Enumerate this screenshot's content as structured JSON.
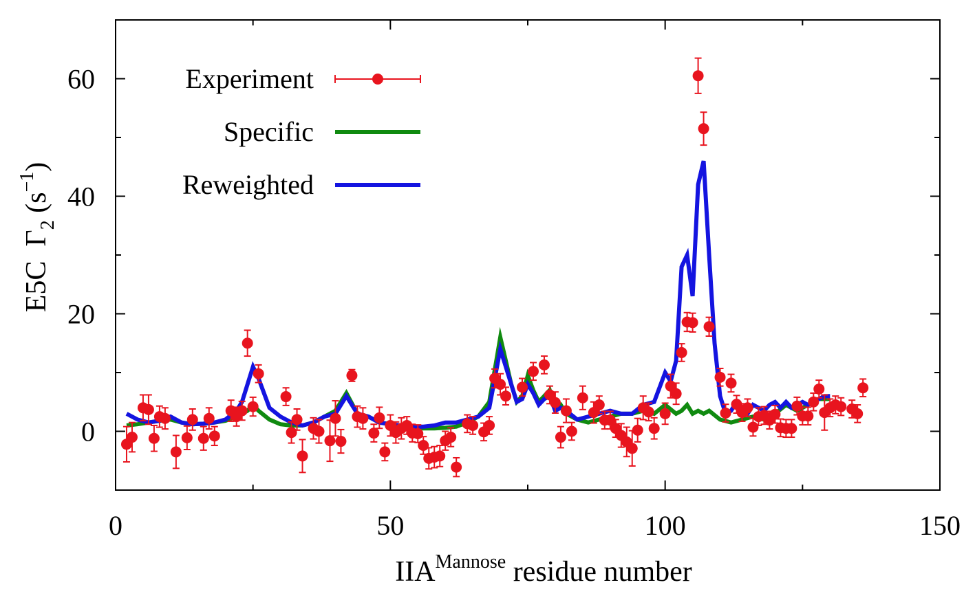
{
  "chart_data": {
    "type": "scatter",
    "xlabel": {
      "main": "IIA",
      "sup": "Mannose",
      "rest": " residue number"
    },
    "ylabel": {
      "pre": "E5C  Γ",
      "sub": "2",
      "mid": " (s",
      "sup": "−1",
      "post": ")"
    },
    "xlim": [
      0,
      150
    ],
    "ylim": [
      -10,
      70
    ],
    "xticks": [
      0,
      50,
      100,
      150
    ],
    "yticks": [
      0,
      20,
      40,
      60
    ],
    "grid": false,
    "legend_position": "top-left",
    "colors": {
      "experiment": "#e8141e",
      "specific": "#108a10",
      "reweighted": "#1414e0"
    },
    "series": [
      {
        "name": "Experiment",
        "kind": "points-with-errorbars",
        "x": [
          2,
          3,
          5,
          6,
          7,
          8,
          9,
          11,
          13,
          14,
          16,
          17,
          18,
          21,
          22,
          23,
          24,
          25,
          26,
          31,
          32,
          33,
          34,
          36,
          37,
          39,
          40,
          41,
          43,
          44,
          45,
          47,
          48,
          49,
          50,
          51,
          52,
          53,
          54,
          55,
          56,
          57,
          58,
          59,
          60,
          61,
          62,
          64,
          65,
          67,
          68,
          69,
          70,
          71,
          74,
          76,
          78,
          79,
          80,
          81,
          82,
          83,
          85,
          87,
          88,
          89,
          90,
          91,
          92,
          93,
          94,
          95,
          96,
          97,
          98,
          100,
          101,
          102,
          103,
          104,
          105,
          106,
          107,
          108,
          110,
          111,
          112,
          113,
          114,
          115,
          116,
          117,
          118,
          119,
          120,
          121,
          122,
          123,
          124,
          125,
          126,
          127,
          128,
          129,
          130,
          131,
          132,
          134,
          135,
          136
        ],
        "y": [
          -2.2,
          -1.0,
          4.0,
          3.7,
          -1.2,
          2.5,
          2.2,
          -3.5,
          -1.1,
          2.0,
          -1.2,
          2.2,
          -0.8,
          3.5,
          2.5,
          3.5,
          15.0,
          4.2,
          9.8,
          5.9,
          -0.2,
          2.0,
          -4.2,
          0.5,
          0.0,
          -1.6,
          2.2,
          -1.7,
          9.5,
          2.5,
          2.2,
          -0.3,
          2.3,
          -3.5,
          1.0,
          -0.2,
          0.5,
          1.0,
          -0.3,
          -0.4,
          -2.4,
          -4.6,
          -4.4,
          -4.2,
          -1.6,
          -1.0,
          -6.1,
          1.3,
          1.0,
          -0.1,
          1.0,
          9.0,
          8.0,
          6.0,
          7.5,
          10.2,
          11.3,
          6.2,
          4.9,
          -1.0,
          3.5,
          0.0,
          5.7,
          3.2,
          4.5,
          1.9,
          1.9,
          0.5,
          -0.7,
          -1.8,
          -2.9,
          0.2,
          4.0,
          3.3,
          0.5,
          3.0,
          7.7,
          6.4,
          13.4,
          18.6,
          18.5,
          60.5,
          51.5,
          17.8,
          9.2,
          3.1,
          8.2,
          4.6,
          3.2,
          4.0,
          0.7,
          2.5,
          2.7,
          1.9,
          2.9,
          0.6,
          0.5,
          0.5,
          4.3,
          2.6,
          2.6,
          5.0,
          7.2,
          3.2,
          4.0,
          4.5,
          4.2,
          3.8,
          3.0,
          7.4
        ],
        "yerr": [
          3.0,
          2.5,
          2.2,
          2.5,
          2.2,
          1.8,
          1.8,
          2.8,
          2.0,
          1.8,
          2.0,
          1.8,
          1.6,
          1.8,
          1.6,
          1.6,
          2.2,
          1.6,
          1.5,
          1.5,
          1.8,
          1.8,
          2.8,
          1.8,
          2.0,
          3.5,
          3.0,
          2.0,
          1.0,
          1.8,
          1.8,
          1.5,
          1.8,
          1.5,
          1.8,
          1.8,
          1.8,
          1.5,
          1.5,
          1.5,
          1.5,
          1.8,
          1.8,
          1.8,
          1.6,
          1.6,
          1.6,
          1.5,
          1.5,
          1.5,
          1.5,
          1.6,
          1.8,
          1.5,
          1.5,
          1.5,
          1.5,
          1.5,
          1.8,
          1.8,
          2.0,
          1.5,
          2.0,
          1.8,
          1.5,
          1.5,
          1.5,
          1.5,
          2.0,
          2.5,
          3.0,
          2.0,
          2.0,
          1.5,
          1.8,
          1.8,
          2.0,
          1.8,
          1.5,
          1.6,
          1.6,
          3.0,
          2.8,
          1.6,
          1.5,
          1.5,
          1.5,
          1.5,
          1.5,
          1.5,
          1.5,
          1.5,
          1.5,
          1.5,
          1.5,
          1.5,
          1.5,
          1.5,
          1.5,
          1.5,
          1.5,
          1.5,
          1.5,
          3.0,
          1.5,
          1.5,
          1.5,
          1.5,
          1.5,
          1.5
        ]
      },
      {
        "name": "Specific",
        "kind": "line",
        "x": [
          2,
          4,
          6,
          8,
          10,
          12,
          14,
          16,
          18,
          20,
          22,
          24,
          25,
          26,
          28,
          30,
          32,
          34,
          36,
          38,
          40,
          42,
          44,
          46,
          48,
          50,
          52,
          54,
          56,
          58,
          60,
          62,
          64,
          66,
          68,
          70,
          71,
          72,
          73,
          74,
          75,
          76,
          77,
          78,
          79,
          80,
          81,
          82,
          84,
          86,
          88,
          90,
          92,
          94,
          96,
          98,
          100,
          102,
          103,
          104,
          105,
          106,
          107,
          108,
          110,
          112,
          114,
          116,
          118,
          120,
          122,
          124,
          126,
          128,
          130
        ],
        "y": [
          1.0,
          1.2,
          1.5,
          1.8,
          2.0,
          1.5,
          1.2,
          1.3,
          1.5,
          1.8,
          2.5,
          3.5,
          4.5,
          3.5,
          2.0,
          1.2,
          1.0,
          1.0,
          1.5,
          2.5,
          3.5,
          6.5,
          3.0,
          2.5,
          1.5,
          1.2,
          0.8,
          0.6,
          0.5,
          0.5,
          0.6,
          0.8,
          1.5,
          2.5,
          5.0,
          16.0,
          12.0,
          8.0,
          5.0,
          6.0,
          9.5,
          7.0,
          5.0,
          6.0,
          7.0,
          4.0,
          4.5,
          3.0,
          2.0,
          1.5,
          2.0,
          2.5,
          3.0,
          3.0,
          3.5,
          3.0,
          4.5,
          3.0,
          3.5,
          4.5,
          3.0,
          3.5,
          3.0,
          3.5,
          2.0,
          1.5,
          2.0,
          2.5,
          2.0,
          3.0,
          4.5,
          3.5,
          4.5,
          5.5,
          5.5
        ]
      },
      {
        "name": "Reweighted",
        "kind": "line",
        "x": [
          2,
          4,
          6,
          8,
          10,
          12,
          14,
          16,
          18,
          20,
          22,
          23,
          24,
          25,
          26,
          28,
          30,
          32,
          34,
          36,
          38,
          40,
          42,
          44,
          46,
          48,
          50,
          52,
          54,
          56,
          58,
          60,
          62,
          64,
          66,
          68,
          70,
          71,
          72,
          73,
          74,
          75,
          76,
          77,
          78,
          79,
          80,
          81,
          82,
          84,
          86,
          88,
          90,
          92,
          94,
          96,
          98,
          100,
          101,
          102,
          103,
          104,
          105,
          106,
          107,
          108,
          109,
          110,
          111,
          112,
          113,
          114,
          115,
          116,
          117,
          118,
          119,
          120,
          121,
          122,
          123,
          124,
          125,
          126,
          127,
          128,
          129,
          130
        ],
        "y": [
          3.0,
          2.0,
          1.5,
          1.8,
          2.5,
          1.5,
          1.2,
          1.3,
          1.5,
          2.0,
          3.5,
          5.0,
          8.0,
          11.0,
          9.0,
          4.0,
          2.5,
          1.5,
          1.0,
          1.5,
          2.5,
          3.0,
          6.0,
          3.0,
          2.5,
          1.5,
          1.2,
          1.0,
          0.8,
          0.8,
          1.0,
          1.5,
          1.5,
          2.0,
          2.5,
          4.0,
          14.0,
          11.0,
          8.0,
          5.0,
          5.5,
          8.0,
          6.5,
          4.5,
          5.5,
          6.0,
          3.5,
          4.0,
          3.5,
          2.0,
          2.5,
          3.0,
          3.5,
          3.0,
          3.0,
          4.5,
          5.0,
          10.0,
          8.5,
          12.0,
          28.0,
          30.0,
          23.0,
          42.0,
          46.0,
          30.0,
          15.0,
          6.0,
          3.0,
          3.5,
          5.0,
          4.0,
          3.0,
          4.5,
          4.0,
          3.5,
          4.5,
          5.0,
          4.0,
          5.0,
          4.0,
          4.5,
          5.0,
          4.5,
          5.0,
          5.5,
          6.0,
          6.0
        ]
      }
    ]
  }
}
